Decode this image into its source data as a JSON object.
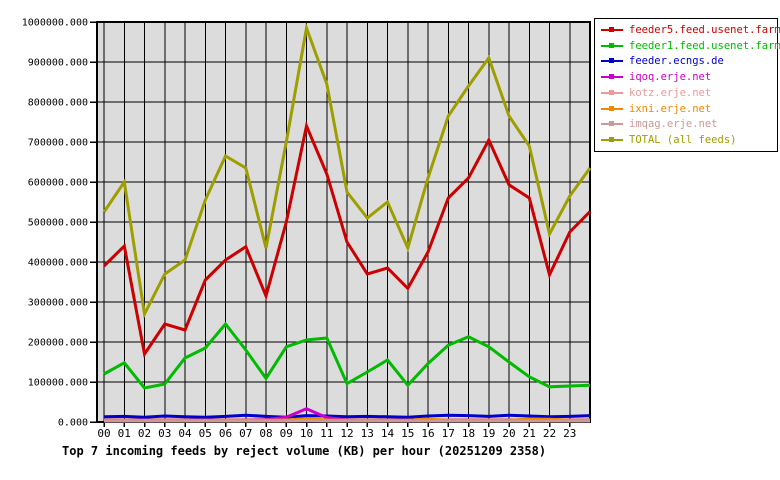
{
  "title": "Top 7 incoming feeds by reject volume (KB) per hour (20251209 2358)",
  "colors": {
    "page_background": "#ffffff",
    "plot_background": "#dcdcdc",
    "grid": "#000000",
    "frame": "#000000",
    "axis_text": "#000000"
  },
  "chart_data": {
    "type": "line",
    "title": "Top 7 incoming feeds by reject volume (KB) per hour (20251209 2358)",
    "xlabel": "",
    "ylabel": "",
    "x_tick_labels": [
      "00",
      "01",
      "02",
      "03",
      "04",
      "05",
      "06",
      "07",
      "08",
      "09",
      "10",
      "11",
      "12",
      "13",
      "14",
      "15",
      "16",
      "17",
      "18",
      "19",
      "20",
      "21",
      "22",
      "23"
    ],
    "ylim": [
      0,
      1000000
    ],
    "y_tick_step": 100000,
    "y_tick_decimal_places": 3,
    "grid": "on",
    "legend_position": "outside-top-right",
    "note": "25 points per series: hours 00-23 plus the value at the chart right edge (partial hour ending 2358)",
    "series": [
      {
        "name": "feeder5.feed.usenet.farm",
        "color": "#cc0000",
        "values": [
          390000,
          440000,
          170000,
          245000,
          230000,
          355000,
          405000,
          438000,
          315000,
          500000,
          740000,
          620000,
          450000,
          370000,
          385000,
          334000,
          425000,
          560000,
          610000,
          705000,
          593000,
          560000,
          368000,
          475000,
          526000
        ]
      },
      {
        "name": "feeder1.feed.usenet.farm",
        "color": "#00bb00",
        "values": [
          120000,
          148000,
          85000,
          95000,
          160000,
          185000,
          245000,
          180000,
          109000,
          188000,
          205000,
          210000,
          96000,
          125000,
          155000,
          92000,
          146000,
          192000,
          213000,
          188000,
          150000,
          113000,
          88000,
          90000,
          92000
        ]
      },
      {
        "name": "feeder.ecngs.de",
        "color": "#0000cc",
        "values": [
          13000,
          14000,
          12000,
          15000,
          13000,
          12000,
          14000,
          17000,
          14000,
          12000,
          16000,
          15000,
          13000,
          14000,
          13000,
          12000,
          15000,
          17000,
          16000,
          14000,
          17000,
          15000,
          13000,
          14000,
          16000
        ]
      },
      {
        "name": "iqoq.erje.net",
        "color": "#cc00cc",
        "values": [
          5000,
          5000,
          5000,
          5000,
          5000,
          5000,
          5000,
          5000,
          6000,
          12000,
          33000,
          11000,
          5000,
          5000,
          5000,
          5000,
          5000,
          5000,
          5000,
          5000,
          5000,
          5000,
          5000,
          5000,
          5000
        ]
      },
      {
        "name": "kotz.erje.net",
        "color": "#ee9999",
        "values": [
          4000,
          4000,
          4000,
          4000,
          4000,
          4000,
          4000,
          4000,
          4000,
          4000,
          5000,
          4000,
          4000,
          4000,
          4000,
          4000,
          4000,
          4000,
          4000,
          4000,
          4000,
          4000,
          4000,
          4000,
          4000
        ]
      },
      {
        "name": "ixni.erje.net",
        "color": "#ee8800",
        "values": [
          4500,
          4500,
          4500,
          4500,
          4500,
          4500,
          4500,
          4500,
          4500,
          5000,
          8000,
          5000,
          4500,
          4500,
          4500,
          4500,
          7000,
          4500,
          4500,
          4500,
          4500,
          7500,
          7000,
          4500,
          4500
        ]
      },
      {
        "name": "imqag.erje.net",
        "color": "#cc9999",
        "values": [
          2500,
          2500,
          2500,
          2500,
          2500,
          2500,
          2500,
          2500,
          2500,
          2500,
          3000,
          2500,
          2500,
          2500,
          2500,
          2500,
          2500,
          2500,
          2500,
          2500,
          2500,
          2500,
          2500,
          2500,
          2500
        ]
      },
      {
        "name": "TOTAL (all feeds)",
        "color": "#9e9e00",
        "values": [
          525000,
          600000,
          270000,
          370000,
          405000,
          555000,
          665000,
          635000,
          435000,
          700000,
          985000,
          845000,
          575000,
          510000,
          550000,
          435000,
          610000,
          765000,
          840000,
          910000,
          765000,
          690000,
          470000,
          565000,
          635000
        ]
      }
    ]
  }
}
